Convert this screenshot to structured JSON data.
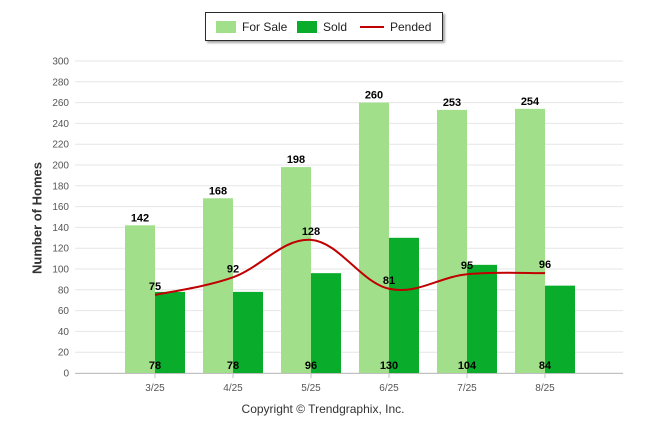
{
  "legend": {
    "for_sale": "For Sale",
    "sold": "Sold",
    "pended": "Pended"
  },
  "credits": "Copyright © Trendgraphix, Inc.",
  "colors": {
    "for_sale": "#a2df8a",
    "sold": "#0aad2b",
    "pended": "#c00000",
    "grid": "#e6e6e6",
    "axis": "#c0c0c0"
  },
  "chart_data": {
    "type": "bar",
    "title": "",
    "xlabel": "",
    "ylabel": "Number of Homes",
    "ylim": [
      0,
      300
    ],
    "yticks": [
      0,
      20,
      40,
      60,
      80,
      100,
      120,
      140,
      160,
      180,
      200,
      220,
      240,
      260,
      280,
      300
    ],
    "grid": true,
    "legend_position": "top",
    "categories": [
      "3/25",
      "4/25",
      "5/25",
      "6/25",
      "7/25",
      "8/25"
    ],
    "series": [
      {
        "name": "For Sale",
        "type": "bar",
        "values": [
          142,
          168,
          198,
          260,
          253,
          254
        ]
      },
      {
        "name": "Sold",
        "type": "bar",
        "values": [
          78,
          78,
          96,
          130,
          104,
          84
        ]
      },
      {
        "name": "Pended",
        "type": "line",
        "smooth": true,
        "values": [
          75,
          92,
          128,
          81,
          95,
          96
        ]
      }
    ]
  }
}
